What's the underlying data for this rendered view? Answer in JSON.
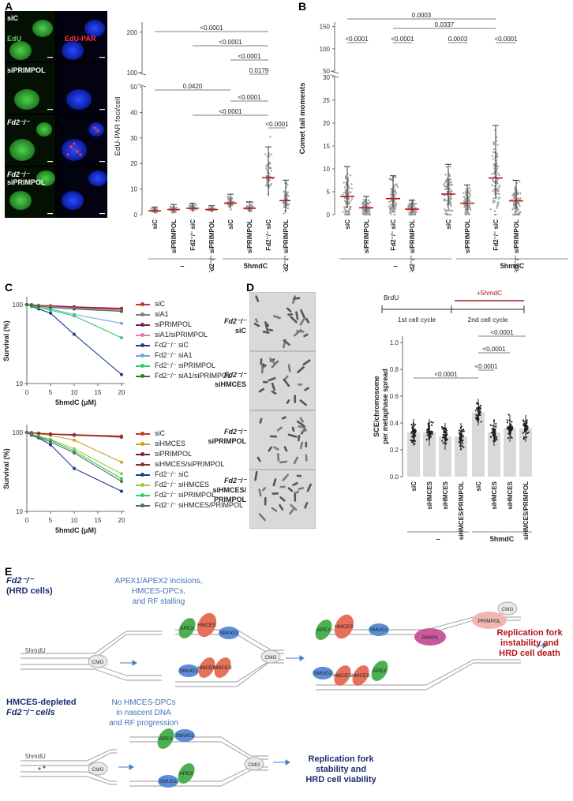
{
  "panels": {
    "A": "A",
    "B": "B",
    "C": "C",
    "D": "D",
    "E": "E"
  },
  "panel_a": {
    "micrographs": [
      {
        "label_line1": "siC",
        "label_line2": "",
        "channel_green": "EdU",
        "channel_red": "EdU-PAR"
      },
      {
        "label_line1": "siPRIMPOL",
        "label_line2": ""
      },
      {
        "label_line1": "Fd2⁻/⁻",
        "label_line2": ""
      },
      {
        "label_line1": "Fd2⁻/⁻",
        "label_line2": "siPRIMPOL"
      }
    ],
    "chart_data": {
      "type": "scatter",
      "ylabel": "EdU-PAR foci/cell",
      "y_ticks_low": [
        "0",
        "10",
        "20",
        "30",
        "40",
        "50"
      ],
      "y_ticks_high": [
        "100",
        "200"
      ],
      "categories": [
        "siC",
        "siPRIMPOL",
        "Fd2⁻/⁻ siC",
        "Fd2⁻/⁻ siPRIMPOL",
        "siC",
        "siPRIMPOL",
        "Fd2⁻/⁻ siC",
        "Fd2⁻/⁻ siPRIMPOL"
      ],
      "means": [
        1.5,
        2.0,
        2.5,
        2.0,
        4.5,
        2.5,
        14.5,
        5.5
      ],
      "sd": [
        1.5,
        2.0,
        2.0,
        1.5,
        3.5,
        2.5,
        12.0,
        8.0
      ],
      "groups": [
        "–",
        "5hmdC"
      ],
      "comparisons": [
        {
          "label": "<0.0001",
          "from": 0,
          "to": 6
        },
        {
          "label": "<0.0001",
          "from": 2,
          "to": 6
        },
        {
          "label": "<0.0001",
          "from": 4,
          "to": 6
        },
        {
          "label": "0.0179",
          "from": 5,
          "to": 6
        },
        {
          "label": "0.0420",
          "from": 0,
          "to": 4
        },
        {
          "label": "<0.0001",
          "from": 4,
          "to": 6
        },
        {
          "label": "<0.0001",
          "from": 2,
          "to": 6
        },
        {
          "label": "<0.0001",
          "from": 6,
          "to": 7
        }
      ]
    }
  },
  "panel_b": {
    "chart_data": {
      "type": "scatter",
      "ylabel": "Comet tail moments",
      "y_ticks_low": [
        "0",
        "5",
        "10",
        "15",
        "20",
        "25",
        "30"
      ],
      "y_ticks_high": [
        "50",
        "100",
        "150"
      ],
      "categories": [
        "siC",
        "siPRIMPOL",
        "Fd2⁻/⁻ siC",
        "Fd2⁻/⁻ siPRIMPOL",
        "siC",
        "siPRIMPOL",
        "Fd2⁻/⁻ siC",
        "Fd2⁻/⁻ siPRIMPOL"
      ],
      "means": [
        4.0,
        1.5,
        3.5,
        1.2,
        4.5,
        2.5,
        8.0,
        3.0
      ],
      "sd": [
        6.5,
        2.5,
        5.0,
        2.0,
        6.5,
        4.0,
        11.5,
        4.5
      ],
      "groups": [
        "–",
        "5hmdC"
      ],
      "comparisons": [
        {
          "label": "<0.0001",
          "from": 0,
          "to": 1
        },
        {
          "label": "<0.0001",
          "from": 2,
          "to": 3
        },
        {
          "label": "0.0003",
          "from": 4,
          "to": 5
        },
        {
          "label": "<0.0001",
          "from": 6,
          "to": 7
        },
        {
          "label": "0.0337",
          "from": 2,
          "to": 6
        },
        {
          "label": "0.0003",
          "from": 0,
          "to": 6
        }
      ]
    }
  },
  "panel_c": {
    "top": {
      "chart_data": {
        "type": "line",
        "xlabel": "5hmdC (μM)",
        "ylabel": "Survival (%)",
        "x": [
          0,
          1,
          2.5,
          5,
          10,
          20
        ],
        "x_ticks": [
          "0",
          "5",
          "10",
          "15",
          "20"
        ],
        "y_ticks": [
          "10",
          "100"
        ],
        "series": [
          {
            "name": "siC",
            "color": "#c0392b",
            "values": [
              100,
              100,
              98,
              97,
              94,
              90
            ]
          },
          {
            "name": "siA1",
            "color": "#7f7f7f",
            "values": [
              100,
              99,
              97,
              95,
              92,
              85
            ]
          },
          {
            "name": "siPRIMPOL",
            "color": "#7b1e50",
            "values": [
              100,
              100,
              97,
              96,
              93,
              88
            ]
          },
          {
            "name": "siA1/siPRIMPOL",
            "color": "#e377c2",
            "values": [
              100,
              99,
              96,
              94,
              90,
              84
            ]
          },
          {
            "name": "Fd2⁻/⁻ siC",
            "color": "#1f3a93",
            "values": [
              100,
              95,
              88,
              78,
              42,
              13
            ]
          },
          {
            "name": "Fd2⁻/⁻ siA1",
            "color": "#6fa8dc",
            "values": [
              100,
              96,
              92,
              88,
              75,
              58
            ]
          },
          {
            "name": "Fd2⁻/⁻ siPRIMPOL",
            "color": "#2ecc71",
            "values": [
              100,
              97,
              92,
              85,
              72,
              38
            ]
          },
          {
            "name": "Fd2⁻/⁻ siA1/siPRIMPOL",
            "color": "#38761d",
            "values": [
              100,
              98,
              95,
              92,
              88,
              82
            ]
          }
        ]
      }
    },
    "bottom": {
      "chart_data": {
        "type": "line",
        "xlabel": "5hmdC (μM)",
        "ylabel": "Survival (%)",
        "x": [
          0,
          1,
          2.5,
          5,
          10,
          20
        ],
        "x_ticks": [
          "0",
          "5",
          "10",
          "15",
          "20"
        ],
        "y_ticks": [
          "10",
          "100"
        ],
        "series": [
          {
            "name": "siC",
            "color": "#c0392b",
            "values": [
              100,
              99,
              98,
              96,
              94,
              90
            ]
          },
          {
            "name": "siHMCES",
            "color": "#c9a227",
            "values": [
              100,
              98,
              96,
              92,
              80,
              42
            ]
          },
          {
            "name": "siPRIMPOL",
            "color": "#7b1e50",
            "values": [
              100,
              99,
              97,
              95,
              92,
              88
            ]
          },
          {
            "name": "siHMCES/siPRIMPOL",
            "color": "#8e2d2d",
            "values": [
              100,
              99,
              97,
              95,
              93,
              87
            ]
          },
          {
            "name": "Fd2⁻/⁻ siC",
            "color": "#1f3a93",
            "values": [
              100,
              92,
              85,
              70,
              35,
              18
            ]
          },
          {
            "name": "Fd2⁻/⁻ siHMCES",
            "color": "#9acd32",
            "values": [
              100,
              95,
              90,
              82,
              62,
              30
            ]
          },
          {
            "name": "Fd2⁻/⁻ siPRIMPOL",
            "color": "#2ecc71",
            "values": [
              100,
              94,
              88,
              80,
              58,
              26
            ]
          },
          {
            "name": "Fd2⁻/⁻ siHMCES/PRIMPOL",
            "color": "#5b6b5b",
            "values": [
              100,
              93,
              86,
              76,
              55,
              24
            ]
          }
        ]
      }
    }
  },
  "panel_d": {
    "spreads": [
      {
        "line1": "Fd2⁻/⁻",
        "line2": "siC",
        "line3": ""
      },
      {
        "line1": "Fd2⁻/⁻",
        "line2": "siHMCES",
        "line3": ""
      },
      {
        "line1": "Fd2⁻/⁻",
        "line2": "siPRIMPOL",
        "line3": ""
      },
      {
        "line1": "Fd2⁻/⁻",
        "line2": "siHMCES/",
        "line3": "PRIMPOL"
      }
    ],
    "schematic": {
      "brdu": "BrdU",
      "treatment": "+5hmdC",
      "cycle1": "1st cell cycle",
      "cycle2": "2nd cell cycle"
    },
    "chart_data": {
      "type": "bar",
      "ylabel_line1": "SCE/chromosome",
      "ylabel_line2": "per metaphase spread",
      "y_ticks": [
        "0.0",
        "0.2",
        "0.4",
        "0.6",
        "0.8",
        "1.0"
      ],
      "ylim": [
        0,
        1.0
      ],
      "categories": [
        "siC",
        "siHMCES",
        "siHMCES",
        "siHMCES/PRIMPOL",
        "siC",
        "siHMCES",
        "siHMCES",
        "siHMCES/PRIMPOL"
      ],
      "values": [
        0.33,
        0.33,
        0.3,
        0.3,
        0.48,
        0.33,
        0.36,
        0.36
      ],
      "groups": [
        "–",
        "5hmdC"
      ],
      "comparisons": [
        {
          "label": "<0.0001",
          "from": 0,
          "to": 4
        },
        {
          "label": "<0.0001",
          "from": 4,
          "to": 5
        },
        {
          "label": "<0.0001",
          "from": 4,
          "to": 6
        },
        {
          "label": "<0.0001",
          "from": 4,
          "to": 7
        }
      ]
    }
  },
  "panel_e": {
    "top_title_line1": "Fd2⁻/⁻",
    "top_title_line2": "(HRD cells)",
    "top_note_line1": "APEX1/APEX2 incisions,",
    "top_note_line2": "HMCES-DPCs,",
    "top_note_line3": "and RF stalling",
    "fork_label": "5hmdU",
    "cmg": "CMG",
    "apex": "APEX",
    "hmces": "HMCES",
    "smug1": "SMUG1",
    "parp1": "PARP1",
    "primpol": "PRIMPOL",
    "top_outcome_line1": "Replication fork",
    "top_outcome_line2": "instability and",
    "top_outcome_line3": "HRD cell death",
    "bottom_title_line1": "HMCES-depleted",
    "bottom_title_line2": "Fd2⁻/⁻ cells",
    "bottom_note_line1": "No HMCES-DPCs",
    "bottom_note_line2": "in nascent DNA",
    "bottom_note_line3": "and RF progression",
    "bottom_outcome_line1": "Replication fork",
    "bottom_outcome_line2": "stability and",
    "bottom_outcome_line3": "HRD cell viability"
  }
}
